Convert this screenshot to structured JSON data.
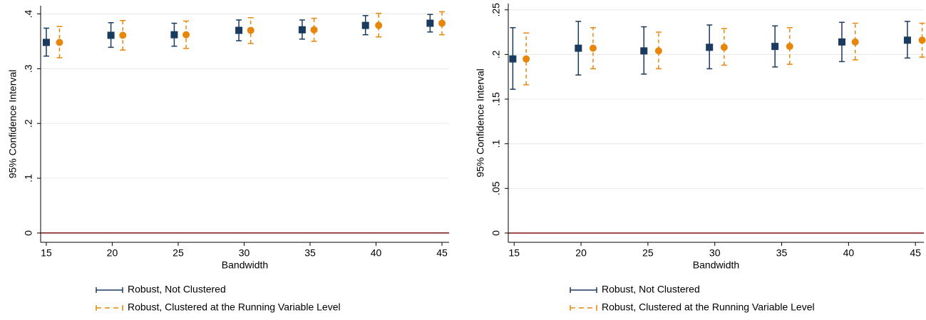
{
  "chart_data": [
    {
      "type": "errorbar",
      "xlabel": "Bandwidth",
      "ylabel": "95% Confidence Interval",
      "xlim": [
        14.57,
        45.54
      ],
      "xticks": [
        15,
        20,
        25,
        30,
        35,
        40,
        45
      ],
      "ylim": [
        -0.017,
        0.415
      ],
      "yticks": [
        0,
        {
          "value": 0.1,
          "label": ".1"
        },
        {
          "value": 0.2,
          "label": ".2"
        },
        {
          "value": 0.3,
          "label": ".3"
        },
        {
          "value": 0.4,
          "label": ".4"
        }
      ],
      "grid": true,
      "refline_color": "#7a1010",
      "legend": "bottom",
      "series": [
        {
          "name": "Robust, Not Clustered",
          "color": "#1a3a5e",
          "marker": "square",
          "dash": false,
          "x": [
            15.0,
            19.9,
            24.7,
            29.6,
            34.4,
            39.2,
            44.1
          ],
          "values": [
            0.348,
            0.361,
            0.362,
            0.37,
            0.371,
            0.379,
            0.383
          ],
          "low": [
            0.323,
            0.339,
            0.341,
            0.351,
            0.354,
            0.362,
            0.367
          ],
          "high": [
            0.374,
            0.384,
            0.383,
            0.389,
            0.389,
            0.397,
            0.399
          ]
        },
        {
          "name": "Robust, Clustered at the Running Variable Level",
          "color": "#e8860c",
          "marker": "circle",
          "dash": true,
          "x": [
            16.0,
            20.8,
            25.6,
            30.5,
            35.3,
            40.2,
            45.0
          ],
          "values": [
            0.348,
            0.361,
            0.362,
            0.37,
            0.371,
            0.379,
            0.383
          ],
          "low": [
            0.32,
            0.334,
            0.337,
            0.346,
            0.35,
            0.358,
            0.362
          ],
          "high": [
            0.377,
            0.388,
            0.387,
            0.393,
            0.392,
            0.401,
            0.404
          ]
        }
      ]
    },
    {
      "type": "errorbar",
      "xlabel": "Bandwidth",
      "ylabel": "95% Confidence Interval",
      "xlim": [
        14.56,
        45.63
      ],
      "xticks": [
        15,
        20,
        25,
        30,
        35,
        40,
        45
      ],
      "ylim": [
        -0.0104,
        0.257
      ],
      "yticks": [
        0,
        {
          "value": 0.05,
          "label": ".05"
        },
        {
          "value": 0.1,
          "label": ".1"
        },
        {
          "value": 0.15,
          "label": ".15"
        },
        {
          "value": 0.2,
          "label": ".2"
        },
        {
          "value": 0.25,
          "label": ".25"
        }
      ],
      "grid": true,
      "refline_color": "#7a1010",
      "legend": "bottom",
      "series": [
        {
          "name": "Robust, Not Clustered",
          "color": "#1a3a5e",
          "marker": "square",
          "dash": false,
          "x": [
            14.9,
            19.8,
            24.7,
            29.6,
            34.5,
            39.5,
            44.4
          ],
          "values": [
            0.195,
            0.207,
            0.204,
            0.208,
            0.209,
            0.214,
            0.216
          ],
          "low": [
            0.161,
            0.177,
            0.178,
            0.184,
            0.186,
            0.192,
            0.196
          ],
          "high": [
            0.23,
            0.237,
            0.231,
            0.233,
            0.232,
            0.236,
            0.237
          ]
        },
        {
          "name": "Robust, Clustered at the Running Variable Level",
          "color": "#e8860c",
          "marker": "circle",
          "dash": true,
          "x": [
            15.9,
            20.9,
            25.8,
            30.7,
            35.6,
            40.5,
            45.5
          ],
          "values": [
            0.195,
            0.207,
            0.204,
            0.208,
            0.209,
            0.214,
            0.216
          ],
          "low": [
            0.166,
            0.184,
            0.184,
            0.188,
            0.189,
            0.194,
            0.197
          ],
          "high": [
            0.224,
            0.23,
            0.225,
            0.229,
            0.23,
            0.235,
            0.235
          ]
        }
      ]
    }
  ]
}
